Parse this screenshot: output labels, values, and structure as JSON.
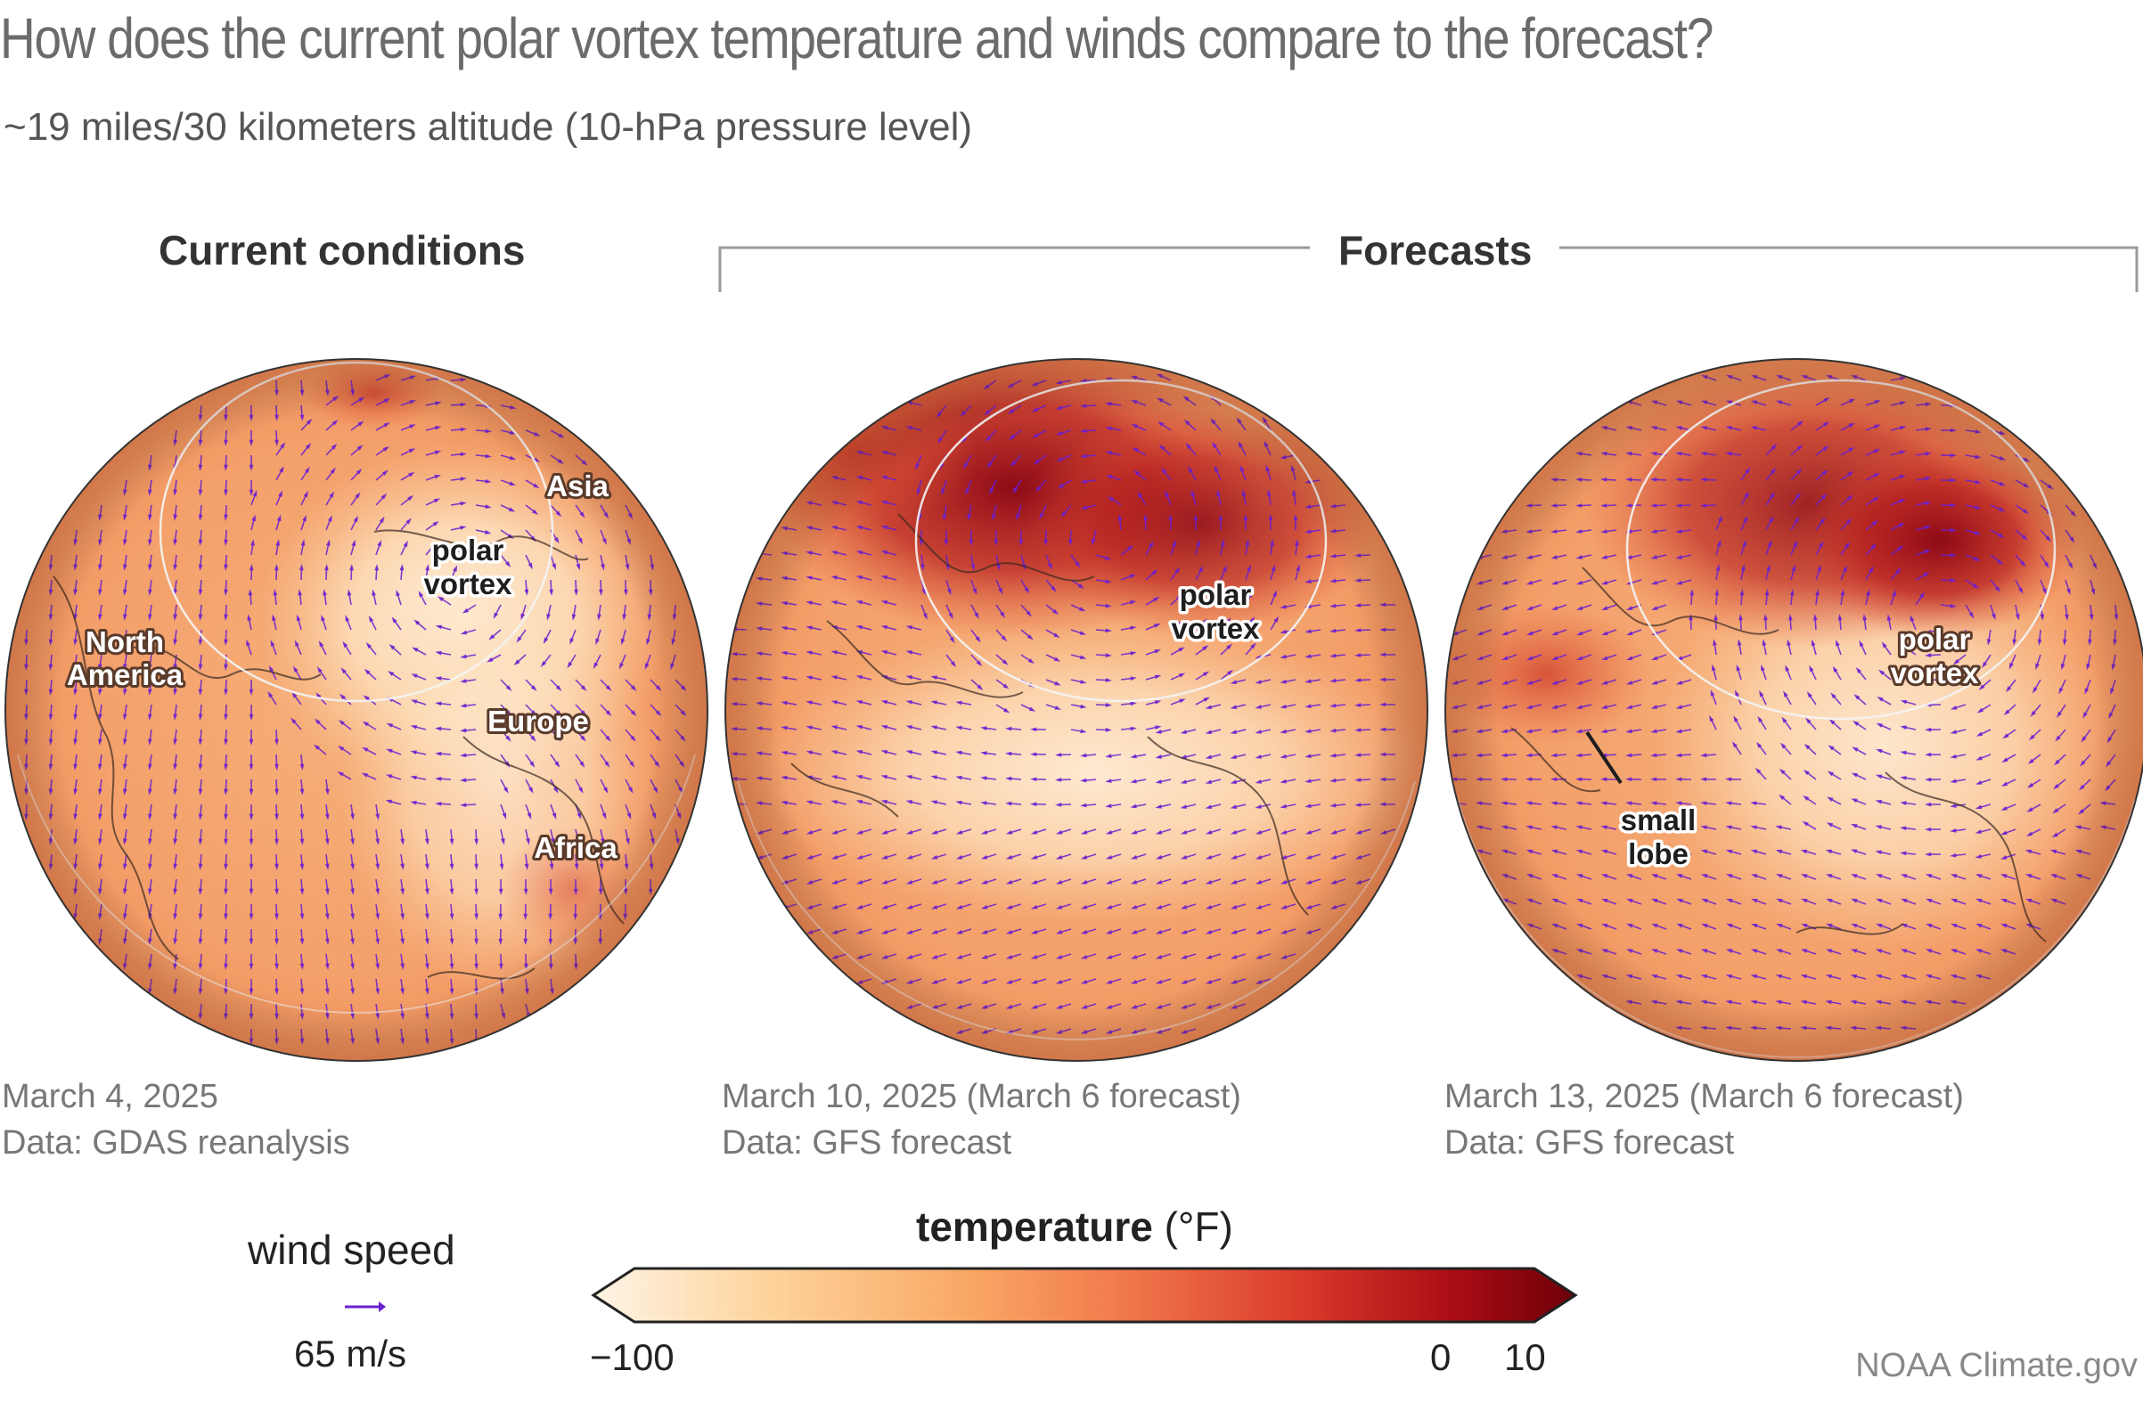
{
  "title": "How does the current polar vortex temperature and winds compare to the forecast?",
  "subtitle": "~19 miles/30 kilometers altitude (10-hPa pressure level)",
  "sections": {
    "current": "Current conditions",
    "forecasts": "Forecasts"
  },
  "maps": [
    {
      "id": "current",
      "date": "March 4, 2025",
      "source": "Data: GDAS reanalysis",
      "labels": [
        {
          "text": "Asia",
          "style": "light"
        },
        {
          "text": "polar",
          "style": "dark"
        },
        {
          "text": "vortex",
          "style": "dark"
        },
        {
          "text": "North",
          "style": "light"
        },
        {
          "text": "America",
          "style": "light"
        },
        {
          "text": "Europe",
          "style": "light"
        },
        {
          "text": "Africa",
          "style": "light"
        }
      ]
    },
    {
      "id": "forecast-mar10",
      "date": "March 10, 2025 (March 6 forecast)",
      "source": "Data: GFS forecast",
      "labels": [
        {
          "text": "polar",
          "style": "dark"
        },
        {
          "text": "vortex",
          "style": "dark"
        }
      ]
    },
    {
      "id": "forecast-mar13",
      "date": "March 13, 2025 (March 6 forecast)",
      "source": "Data: GFS forecast",
      "labels": [
        {
          "text": "polar",
          "style": "light"
        },
        {
          "text": "vortex",
          "style": "light"
        },
        {
          "text": "small",
          "style": "dark"
        },
        {
          "text": "lobe",
          "style": "dark"
        }
      ]
    }
  ],
  "legend": {
    "wind_title": "wind speed",
    "wind_value": "65 m/s",
    "wind_arrow_color": "#6a1fd0",
    "temp_title_bold": "temperature",
    "temp_title_unit": "(°F)",
    "temp_ticks": [
      "−100",
      "0",
      "10"
    ],
    "temp_colors": [
      "#fff4e6",
      "#fdd39a",
      "#f9a866",
      "#f0764a",
      "#d93a2b",
      "#a80c14",
      "#6e0008"
    ]
  },
  "credit": "NOAA Climate.gov"
}
